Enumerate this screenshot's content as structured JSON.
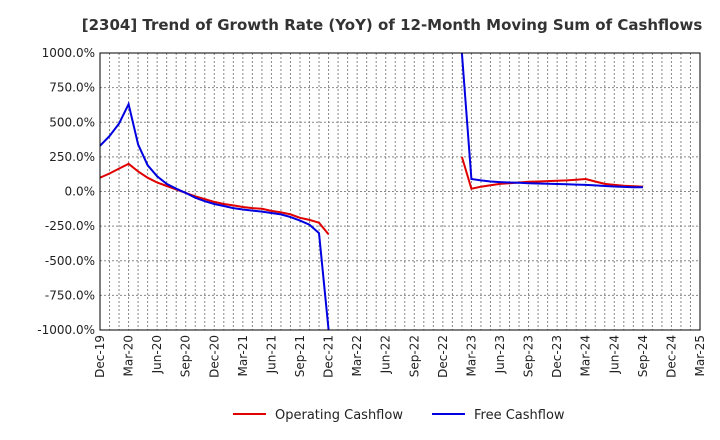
{
  "chart_data": {
    "type": "line",
    "title": "[2304]  Trend of Growth Rate (YoY) of 12-Month Moving Sum of Cashflows",
    "xlabel": "",
    "ylabel": "",
    "ylim": [
      -1000,
      1000
    ],
    "y_ticks": [
      "1000.0%",
      "750.0%",
      "500.0%",
      "250.0%",
      "0.0%",
      "-250.0%",
      "-500.0%",
      "-750.0%",
      "-1000.0%"
    ],
    "x_ticks": [
      "Dec-19",
      "Mar-20",
      "Jun-20",
      "Sep-20",
      "Dec-20",
      "Mar-21",
      "Jun-21",
      "Sep-21",
      "Dec-21",
      "Mar-22",
      "Jun-22",
      "Sep-22",
      "Dec-22",
      "Mar-23",
      "Jun-23",
      "Sep-23",
      "Dec-23",
      "Mar-24",
      "Jun-24",
      "Sep-24",
      "Dec-24",
      "Mar-25"
    ],
    "grid": true,
    "legend_position": "bottom",
    "series": [
      {
        "name": "Operating Cashflow",
        "color": "#e00000",
        "points": [
          [
            "Dec-19",
            100
          ],
          [
            "Jan-20",
            130
          ],
          [
            "Feb-20",
            165
          ],
          [
            "Mar-20",
            200
          ],
          [
            "Apr-20",
            145
          ],
          [
            "May-20",
            100
          ],
          [
            "Jun-20",
            65
          ],
          [
            "Jul-20",
            40
          ],
          [
            "Aug-20",
            15
          ],
          [
            "Sep-20",
            -10
          ],
          [
            "Oct-20",
            -35
          ],
          [
            "Nov-20",
            -55
          ],
          [
            "Dec-20",
            -75
          ],
          [
            "Jan-21",
            -90
          ],
          [
            "Feb-21",
            -100
          ],
          [
            "Mar-21",
            -112
          ],
          [
            "Apr-21",
            -120
          ],
          [
            "May-21",
            -125
          ],
          [
            "Jun-21",
            -140
          ],
          [
            "Jul-21",
            -150
          ],
          [
            "Aug-21",
            -165
          ],
          [
            "Sep-21",
            -190
          ],
          [
            "Oct-21",
            -205
          ],
          [
            "Nov-21",
            -225
          ],
          [
            "Dec-21",
            -310
          ],
          null,
          [
            "Feb-23",
            250
          ],
          [
            "Mar-23",
            20
          ],
          [
            "Apr-23",
            35
          ],
          [
            "May-23",
            45
          ],
          [
            "Jun-23",
            55
          ],
          [
            "Jul-23",
            60
          ],
          [
            "Aug-23",
            65
          ],
          [
            "Sep-23",
            70
          ],
          [
            "Oct-23",
            72
          ],
          [
            "Nov-23",
            75
          ],
          [
            "Dec-23",
            78
          ],
          [
            "Jan-24",
            80
          ],
          [
            "Feb-24",
            85
          ],
          [
            "Mar-24",
            90
          ],
          [
            "Apr-24",
            72
          ],
          [
            "May-24",
            55
          ],
          [
            "Jun-24",
            48
          ],
          [
            "Jul-24",
            42
          ],
          [
            "Aug-24",
            38
          ],
          [
            "Sep-24",
            35
          ]
        ]
      },
      {
        "name": "Free Cashflow",
        "color": "#0000e0",
        "points": [
          [
            "Dec-19",
            330
          ],
          [
            "Jan-20",
            400
          ],
          [
            "Feb-20",
            490
          ],
          [
            "Mar-20",
            630
          ],
          [
            "Apr-20",
            340
          ],
          [
            "May-20",
            190
          ],
          [
            "Jun-20",
            110
          ],
          [
            "Jul-20",
            55
          ],
          [
            "Aug-20",
            20
          ],
          [
            "Sep-20",
            -10
          ],
          [
            "Oct-20",
            -45
          ],
          [
            "Nov-20",
            -70
          ],
          [
            "Dec-20",
            -90
          ],
          [
            "Jan-21",
            -105
          ],
          [
            "Feb-21",
            -120
          ],
          [
            "Mar-21",
            -130
          ],
          [
            "Apr-21",
            -138
          ],
          [
            "May-21",
            -145
          ],
          [
            "Jun-21",
            -155
          ],
          [
            "Jul-21",
            -165
          ],
          [
            "Aug-21",
            -185
          ],
          [
            "Sep-21",
            -210
          ],
          [
            "Oct-21",
            -240
          ],
          [
            "Nov-21",
            -300
          ],
          [
            "Dec-21",
            -1000
          ],
          null,
          [
            "Feb-23",
            1000
          ],
          [
            "Mar-23",
            90
          ],
          [
            "Apr-23",
            80
          ],
          [
            "May-23",
            72
          ],
          [
            "Jun-23",
            68
          ],
          [
            "Jul-23",
            65
          ],
          [
            "Aug-23",
            63
          ],
          [
            "Sep-23",
            60
          ],
          [
            "Oct-23",
            58
          ],
          [
            "Nov-23",
            56
          ],
          [
            "Dec-23",
            54
          ],
          [
            "Jan-24",
            52
          ],
          [
            "Feb-24",
            50
          ],
          [
            "Mar-24",
            48
          ],
          [
            "Apr-24",
            44
          ],
          [
            "May-24",
            40
          ],
          [
            "Jun-24",
            36
          ],
          [
            "Jul-24",
            33
          ],
          [
            "Aug-24",
            31
          ],
          [
            "Sep-24",
            30
          ]
        ]
      }
    ]
  }
}
